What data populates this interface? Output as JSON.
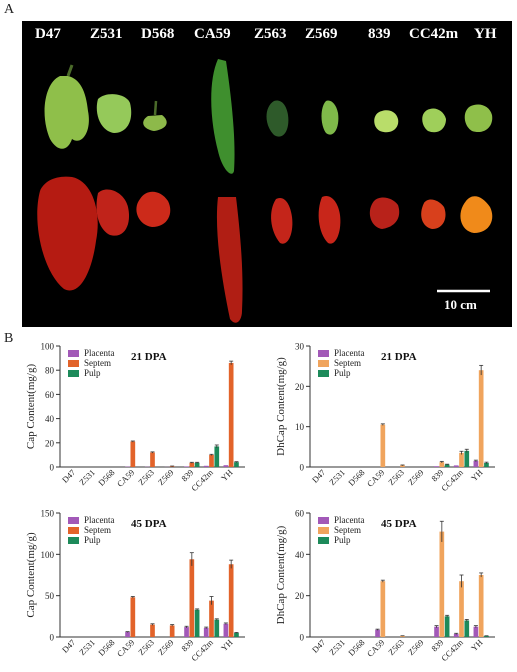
{
  "figure": {
    "panel_a_label": "A",
    "panel_b_label": "B",
    "scale_bar_label": "10 cm",
    "varieties": [
      "D47",
      "Z531",
      "D568",
      "CA59",
      "Z563",
      "Z569",
      "839",
      "CC42m",
      "YH"
    ]
  },
  "colors": {
    "placenta": "#a259b8",
    "septem_cap": "#e2632a",
    "septem_dhcap": "#f0a45d",
    "pulp": "#1d8a5a"
  },
  "chart_data": [
    {
      "type": "bar",
      "title": "21 DPA",
      "ylabel": "Cap Content(mg/g)",
      "ylim": [
        0,
        100
      ],
      "yticks": [
        0,
        20,
        40,
        60,
        80,
        100
      ],
      "categories": [
        "D47",
        "Z531",
        "D568",
        "CA59",
        "Z563",
        "Z569",
        "839",
        "CC42m",
        "YH"
      ],
      "legend_position": "top-left",
      "series": [
        {
          "name": "Placenta",
          "color": "#a259b8",
          "values": [
            0,
            0,
            0,
            0.3,
            0.2,
            0.1,
            0.5,
            1.0,
            1.5
          ],
          "errors": [
            0,
            0,
            0,
            0,
            0,
            0,
            0,
            0,
            0
          ]
        },
        {
          "name": "Septem",
          "color": "#e2632a",
          "values": [
            0,
            0,
            0,
            21,
            12,
            0.5,
            3.5,
            10,
            86
          ],
          "errors": [
            0,
            0,
            0,
            0.5,
            0.5,
            0.3,
            0.4,
            0.5,
            1.5
          ]
        },
        {
          "name": "Pulp",
          "color": "#1d8a5a",
          "values": [
            0,
            0,
            0,
            0,
            0,
            0,
            3.5,
            17,
            4
          ],
          "errors": [
            0,
            0,
            0,
            0,
            0,
            0,
            0.4,
            1.2,
            0.4
          ]
        }
      ]
    },
    {
      "type": "bar",
      "title": "21 DPA",
      "ylabel": "DhCap Content(mg/g)",
      "ylim": [
        0,
        30
      ],
      "yticks": [
        0,
        10,
        20,
        30
      ],
      "categories": [
        "D47",
        "Z531",
        "D568",
        "CA59",
        "Z563",
        "Z569",
        "839",
        "CC42m",
        "YH"
      ],
      "legend_position": "top-left",
      "series": [
        {
          "name": "Placenta",
          "color": "#a259b8",
          "values": [
            0,
            0,
            0,
            0,
            0,
            0,
            0.2,
            0.4,
            1.5
          ],
          "errors": [
            0,
            0,
            0,
            0,
            0,
            0,
            0,
            0,
            0.2
          ]
        },
        {
          "name": "Septem",
          "color": "#f0a45d",
          "values": [
            0,
            0,
            0,
            10.5,
            0.4,
            0,
            1.2,
            3.5,
            24
          ],
          "errors": [
            0,
            0,
            0,
            0.2,
            0.1,
            0,
            0.2,
            0.4,
            1.2
          ]
        },
        {
          "name": "Pulp",
          "color": "#1d8a5a",
          "values": [
            0,
            0,
            0,
            0,
            0,
            0,
            0.6,
            4,
            1
          ],
          "errors": [
            0,
            0,
            0,
            0,
            0,
            0,
            0.1,
            0.4,
            0.2
          ]
        }
      ]
    },
    {
      "type": "bar",
      "title": "45 DPA",
      "ylabel": "Cap Content(mg/g)",
      "ylim": [
        0,
        150
      ],
      "yticks": [
        0,
        50,
        100,
        150
      ],
      "categories": [
        "D47",
        "Z531",
        "D568",
        "CA59",
        "Z563",
        "Z569",
        "839",
        "CC42m",
        "YH"
      ],
      "legend_position": "top-left",
      "series": [
        {
          "name": "Placenta",
          "color": "#a259b8",
          "values": [
            0,
            0,
            0,
            6,
            0,
            0,
            12,
            11,
            16
          ],
          "errors": [
            0,
            0,
            0,
            0.5,
            0,
            0,
            1,
            1,
            1
          ]
        },
        {
          "name": "Septem",
          "color": "#e2632a",
          "values": [
            0,
            0,
            0,
            48,
            15,
            14,
            94,
            44,
            88
          ],
          "errors": [
            0,
            0,
            0,
            1,
            1,
            1,
            8,
            5,
            5
          ]
        },
        {
          "name": "Pulp",
          "color": "#1d8a5a",
          "values": [
            0,
            0,
            0,
            0,
            0,
            0,
            33,
            21,
            5
          ],
          "errors": [
            0,
            0,
            0,
            0,
            0,
            0,
            1,
            1,
            0.5
          ]
        }
      ]
    },
    {
      "type": "bar",
      "title": "45 DPA",
      "ylabel": "DhCap Content(mg/g)",
      "ylim": [
        0,
        60
      ],
      "yticks": [
        0,
        20,
        40,
        60
      ],
      "categories": [
        "D47",
        "Z531",
        "D568",
        "CA59",
        "Z563",
        "Z569",
        "839",
        "CC42m",
        "YH"
      ],
      "legend_position": "top-left",
      "series": [
        {
          "name": "Placenta",
          "color": "#a259b8",
          "values": [
            0,
            0,
            0,
            3.5,
            0,
            0,
            5,
            1.5,
            5
          ],
          "errors": [
            0,
            0,
            0,
            0.3,
            0,
            0,
            0.5,
            0.3,
            0.5
          ]
        },
        {
          "name": "Septem",
          "color": "#f0a45d",
          "values": [
            0,
            0,
            0,
            27,
            0.5,
            0,
            51,
            27,
            30
          ],
          "errors": [
            0,
            0,
            0,
            0.5,
            0.1,
            0,
            5,
            3,
            1
          ]
        },
        {
          "name": "Pulp",
          "color": "#1d8a5a",
          "values": [
            0,
            0,
            0,
            0,
            0,
            0,
            10,
            8,
            0.5
          ],
          "errors": [
            0,
            0,
            0,
            0,
            0,
            0,
            0.5,
            0.5,
            0.1
          ]
        }
      ]
    }
  ]
}
